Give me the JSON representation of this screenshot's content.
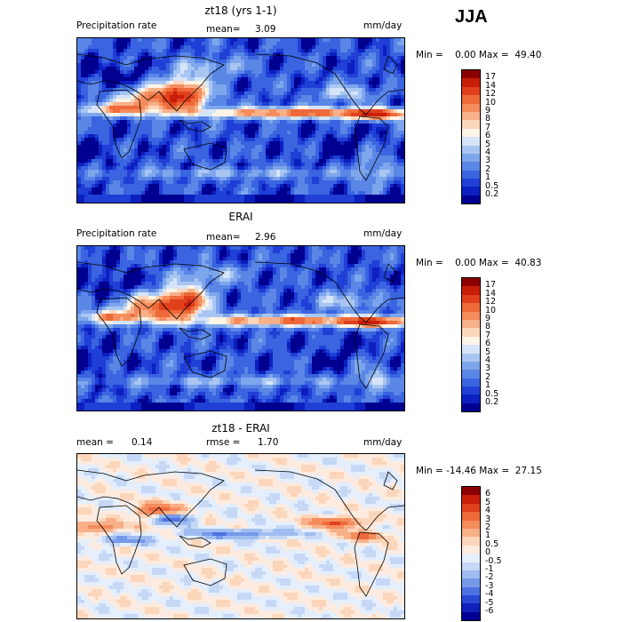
{
  "season": "JJA",
  "panels": [
    {
      "title": "zt18 (yrs 1-1)",
      "left_label": "Precipitation rate",
      "mid_label": "mean=",
      "mid_value": "3.09",
      "right_label": "mm/day",
      "stats": "Min =    0.00 Max =  49.40",
      "colorbar": {
        "labels": [
          "17",
          "14",
          "12",
          "10",
          "9",
          "8",
          "7",
          "6",
          "5",
          "4",
          "3",
          "2",
          "1",
          "0.5",
          "0.2"
        ],
        "colors": [
          "#8b0000",
          "#c81e0a",
          "#e0401c",
          "#ee6a3a",
          "#f58c5c",
          "#f8b089",
          "#fcd6ba",
          "#fff4e6",
          "#d6e4fa",
          "#a9c6f2",
          "#7ea6ec",
          "#5a86e6",
          "#3a64e0",
          "#1f3fd6",
          "#0c1fc0",
          "#000090"
        ]
      },
      "field": "model"
    },
    {
      "title": "ERAI",
      "left_label": "Precipitation rate",
      "mid_label": "mean=",
      "mid_value": "2.96",
      "right_label": "mm/day",
      "stats": "Min =    0.00 Max =  40.83",
      "colorbar": {
        "labels": [
          "17",
          "14",
          "12",
          "10",
          "9",
          "8",
          "7",
          "6",
          "5",
          "4",
          "3",
          "2",
          "1",
          "0.5",
          "0.2"
        ],
        "colors": [
          "#8b0000",
          "#c81e0a",
          "#e0401c",
          "#ee6a3a",
          "#f58c5c",
          "#f8b089",
          "#fcd6ba",
          "#fff4e6",
          "#d6e4fa",
          "#a9c6f2",
          "#7ea6ec",
          "#5a86e6",
          "#3a64e0",
          "#1f3fd6",
          "#0c1fc0",
          "#000090"
        ]
      },
      "field": "obs"
    },
    {
      "title": "zt18 - ERAI",
      "left_label": "mean =",
      "left_value": "0.14",
      "mid_label": "rmse =",
      "mid_value": "1.70",
      "right_label": "mm/day",
      "stats": "Min = -14.46 Max =  27.15",
      "colorbar": {
        "labels": [
          "6",
          "5",
          "4",
          "3",
          "2",
          "1",
          "0.5",
          "0",
          "-0.5",
          "-1",
          "-2",
          "-3",
          "-4",
          "-5",
          "-6"
        ],
        "colors": [
          "#8b0000",
          "#c81e0a",
          "#e0401c",
          "#ee6a3a",
          "#f58c5c",
          "#f8b089",
          "#fcd6ba",
          "#fdebe0",
          "#e4eefc",
          "#c6d8f6",
          "#9fbdf0",
          "#7799ea",
          "#4f72e2",
          "#2a48d6",
          "#1020b8",
          "#000090"
        ]
      },
      "field": "diff"
    }
  ],
  "chart_data": [
    {
      "type": "heatmap",
      "title": "zt18 (yrs 1-1)",
      "variable": "Precipitation rate",
      "units": "mm/day",
      "season": "JJA",
      "mean": 3.09,
      "min": 0.0,
      "max": 49.4,
      "contour_levels": [
        0.2,
        0.5,
        1,
        2,
        3,
        4,
        5,
        6,
        7,
        8,
        9,
        10,
        12,
        14,
        17
      ]
    },
    {
      "type": "heatmap",
      "title": "ERAI",
      "variable": "Precipitation rate",
      "units": "mm/day",
      "season": "JJA",
      "mean": 2.96,
      "min": 0.0,
      "max": 40.83,
      "contour_levels": [
        0.2,
        0.5,
        1,
        2,
        3,
        4,
        5,
        6,
        7,
        8,
        9,
        10,
        12,
        14,
        17
      ]
    },
    {
      "type": "heatmap",
      "title": "zt18 - ERAI",
      "units": "mm/day",
      "season": "JJA",
      "mean": 0.14,
      "rmse": 1.7,
      "min": -14.46,
      "max": 27.15,
      "contour_levels": [
        -6,
        -5,
        -4,
        -3,
        -2,
        -1,
        -0.5,
        0,
        0.5,
        1,
        2,
        3,
        4,
        5,
        6
      ]
    }
  ]
}
